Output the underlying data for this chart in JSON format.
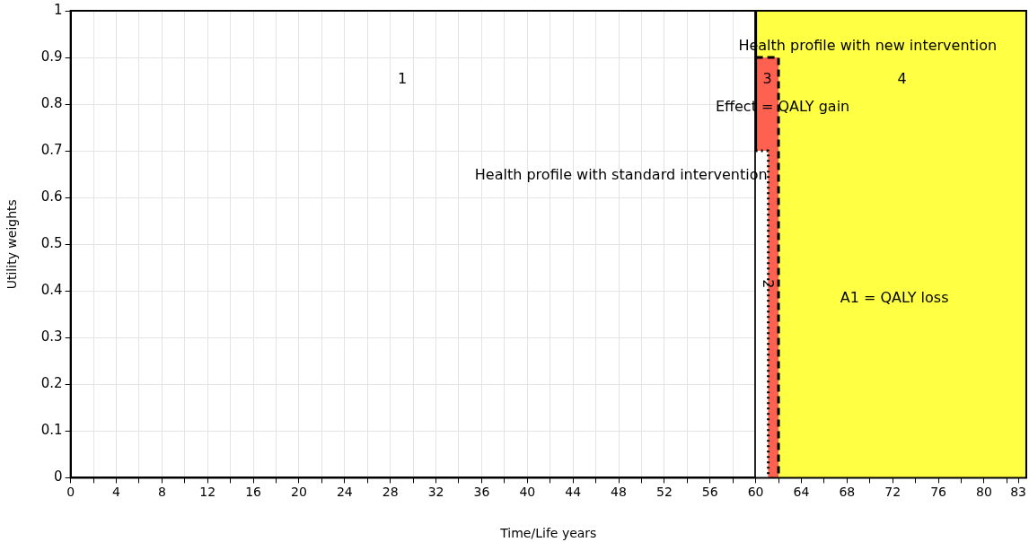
{
  "chart_data": {
    "type": "area",
    "xlabel": "Time/Life years",
    "ylabel": "Utility weights",
    "xlim": [
      0,
      83.7
    ],
    "ylim": [
      0,
      1
    ],
    "xticks": [
      0,
      {
        "value": 2,
        "label": null
      },
      4,
      {
        "value": 6,
        "label": null
      },
      8,
      {
        "value": 10,
        "label": null
      },
      12,
      {
        "value": 14,
        "label": null
      },
      16,
      {
        "value": 18,
        "label": null
      },
      20,
      {
        "value": 22,
        "label": null
      },
      24,
      {
        "value": 26,
        "label": null
      },
      28,
      {
        "value": 30,
        "label": null
      },
      32,
      {
        "value": 34,
        "label": null
      },
      36,
      {
        "value": 38,
        "label": null
      },
      40,
      {
        "value": 42,
        "label": null
      },
      44,
      {
        "value": 46,
        "label": null
      },
      48,
      {
        "value": 50,
        "label": null
      },
      52,
      {
        "value": 54,
        "label": null
      },
      56,
      {
        "value": 58,
        "label": null
      },
      60,
      {
        "value": 62,
        "label": null
      },
      64,
      {
        "value": 66,
        "label": null
      },
      68,
      {
        "value": 70,
        "label": null
      },
      72,
      {
        "value": 74,
        "label": null
      },
      76,
      {
        "value": 78,
        "label": null
      },
      80,
      {
        "value": 82,
        "label": null
      },
      83
    ],
    "yticks": [
      0,
      0.1,
      0.2,
      0.3,
      0.4,
      0.5,
      0.6,
      0.7,
      0.8,
      0.9,
      1
    ],
    "grid": true,
    "legend": false,
    "series": [
      {
        "color": "#ffff44",
        "x": [
          60,
          83.7
        ],
        "values": [
          1,
          1
        ]
      },
      {
        "color": "#ff6150",
        "line_style": "dashed",
        "x": [
          60,
          62,
          62
        ],
        "values": [
          0.9,
          0.9,
          0
        ]
      },
      {
        "color": "#ffffff",
        "line_style": "dotted",
        "x": [
          60,
          61.1,
          61.1
        ],
        "values": [
          0.7,
          0.7,
          0
        ]
      }
    ],
    "ref_lines": [
      {
        "axis": "x",
        "value": 60,
        "color": "#000000"
      }
    ],
    "annotations": [
      "1",
      "2",
      "3",
      "4",
      "Health profile with new intervention",
      "Effect = QALY gain",
      "Health profile with standard intervention",
      "A1 = QALY loss"
    ]
  }
}
